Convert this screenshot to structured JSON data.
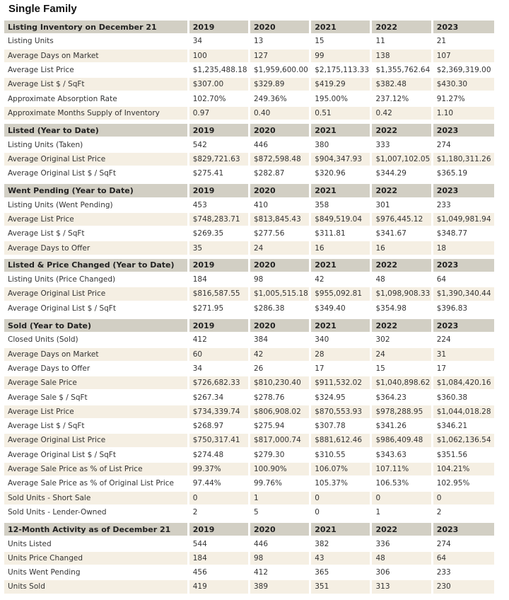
{
  "title": "Single Family",
  "sections": [
    {
      "heading": "Listing Inventory on December 21",
      "years": [
        "2019",
        "2020",
        "2021",
        "2022",
        "2023"
      ],
      "rows": [
        {
          "label": "Listing Units",
          "values": [
            "34",
            "13",
            "15",
            "11",
            "21"
          ]
        },
        {
          "label": "Average Days on Market",
          "values": [
            "100",
            "127",
            "99",
            "138",
            "107"
          ]
        },
        {
          "label": "Average List Price",
          "values": [
            "$1,235,488.18",
            "$1,959,600.00",
            "$2,175,113.33",
            "$1,355,762.64",
            "$2,369,319.00"
          ]
        },
        {
          "label": "Average List $ / SqFt",
          "values": [
            "$307.00",
            "$329.89",
            "$419.29",
            "$382.48",
            "$430.30"
          ]
        },
        {
          "label": "Approximate Absorption Rate",
          "values": [
            "102.70%",
            "249.36%",
            "195.00%",
            "237.12%",
            "91.27%"
          ]
        },
        {
          "label": "Approximate Months Supply of Inventory",
          "values": [
            "0.97",
            "0.40",
            "0.51",
            "0.42",
            "1.10"
          ]
        }
      ]
    },
    {
      "heading": "Listed (Year to Date)",
      "years": [
        "2019",
        "2020",
        "2021",
        "2022",
        "2023"
      ],
      "rows": [
        {
          "label": "Listing Units (Taken)",
          "values": [
            "542",
            "446",
            "380",
            "333",
            "274"
          ]
        },
        {
          "label": "Average Original List Price",
          "values": [
            "$829,721.63",
            "$872,598.48",
            "$904,347.93",
            "$1,007,102.05",
            "$1,180,311.26"
          ]
        },
        {
          "label": "Average Original List $ / SqFt",
          "values": [
            "$275.41",
            "$282.87",
            "$320.96",
            "$344.29",
            "$365.19"
          ]
        }
      ]
    },
    {
      "heading": "Went Pending (Year to Date)",
      "years": [
        "2019",
        "2020",
        "2021",
        "2022",
        "2023"
      ],
      "rows": [
        {
          "label": "Listing Units (Went Pending)",
          "values": [
            "453",
            "410",
            "358",
            "301",
            "233"
          ]
        },
        {
          "label": "Average List Price",
          "values": [
            "$748,283.71",
            "$813,845.43",
            "$849,519.04",
            "$976,445.12",
            "$1,049,981.94"
          ]
        },
        {
          "label": "Average List $ / SqFt",
          "values": [
            "$269.35",
            "$277.56",
            "$311.81",
            "$341.67",
            "$348.77"
          ]
        },
        {
          "label": "Average Days to Offer",
          "values": [
            "35",
            "24",
            "16",
            "16",
            "18"
          ]
        }
      ]
    },
    {
      "heading": "Listed & Price Changed (Year to Date)",
      "years": [
        "2019",
        "2020",
        "2021",
        "2022",
        "2023"
      ],
      "rows": [
        {
          "label": "Listing Units (Price Changed)",
          "values": [
            "184",
            "98",
            "42",
            "48",
            "64"
          ]
        },
        {
          "label": "Average Original List Price",
          "values": [
            "$816,587.55",
            "$1,005,515.18",
            "$955,092.81",
            "$1,098,908.33",
            "$1,390,340.44"
          ]
        },
        {
          "label": "Average Original List $ / SqFt",
          "values": [
            "$271.95",
            "$286.38",
            "$349.40",
            "$354.98",
            "$396.83"
          ]
        }
      ]
    },
    {
      "heading": "Sold (Year to Date)",
      "years": [
        "2019",
        "2020",
        "2021",
        "2022",
        "2023"
      ],
      "rows": [
        {
          "label": "Closed Units (Sold)",
          "values": [
            "412",
            "384",
            "340",
            "302",
            "224"
          ]
        },
        {
          "label": "Average Days on Market",
          "values": [
            "60",
            "42",
            "28",
            "24",
            "31"
          ]
        },
        {
          "label": "Average Days to Offer",
          "values": [
            "34",
            "26",
            "17",
            "15",
            "17"
          ]
        },
        {
          "label": "Average Sale Price",
          "values": [
            "$726,682.33",
            "$810,230.40",
            "$911,532.02",
            "$1,040,898.62",
            "$1,084,420.16"
          ]
        },
        {
          "label": "Average Sale $ / SqFt",
          "values": [
            "$267.34",
            "$278.76",
            "$324.95",
            "$364.23",
            "$360.38"
          ]
        },
        {
          "label": "Average List Price",
          "values": [
            "$734,339.74",
            "$806,908.02",
            "$870,553.93",
            "$978,288.95",
            "$1,044,018.28"
          ]
        },
        {
          "label": "Average List $ / SqFt",
          "values": [
            "$268.97",
            "$275.94",
            "$307.78",
            "$341.26",
            "$346.21"
          ]
        },
        {
          "label": "Average Original List Price",
          "values": [
            "$750,317.41",
            "$817,000.74",
            "$881,612.46",
            "$986,409.48",
            "$1,062,136.54"
          ]
        },
        {
          "label": "Average Original List $ / SqFt",
          "values": [
            "$274.48",
            "$279.30",
            "$310.55",
            "$343.63",
            "$351.56"
          ]
        },
        {
          "label": "Average Sale Price as % of List Price",
          "values": [
            "99.37%",
            "100.90%",
            "106.07%",
            "107.11%",
            "104.21%"
          ]
        },
        {
          "label": "Average Sale Price as % of Original List Price",
          "values": [
            "97.44%",
            "99.76%",
            "105.37%",
            "106.53%",
            "102.95%"
          ]
        },
        {
          "label": "Sold Units - Short Sale",
          "values": [
            "0",
            "1",
            "0",
            "0",
            "0"
          ]
        },
        {
          "label": "Sold Units - Lender-Owned",
          "values": [
            "2",
            "5",
            "0",
            "1",
            "2"
          ]
        }
      ]
    },
    {
      "heading": "12-Month Activity as of December 21",
      "years": [
        "2019",
        "2020",
        "2021",
        "2022",
        "2023"
      ],
      "rows": [
        {
          "label": "Units Listed",
          "values": [
            "544",
            "446",
            "382",
            "336",
            "274"
          ]
        },
        {
          "label": "Units Price Changed",
          "values": [
            "184",
            "98",
            "43",
            "48",
            "64"
          ]
        },
        {
          "label": "Units Went Pending",
          "values": [
            "456",
            "412",
            "365",
            "306",
            "233"
          ]
        },
        {
          "label": "Units Sold",
          "values": [
            "419",
            "389",
            "351",
            "313",
            "230"
          ]
        }
      ]
    }
  ],
  "colors": {
    "header_bg": "#d2cfc4",
    "alt_row_bg": "#f5efe3",
    "row_bg": "#ffffff"
  }
}
